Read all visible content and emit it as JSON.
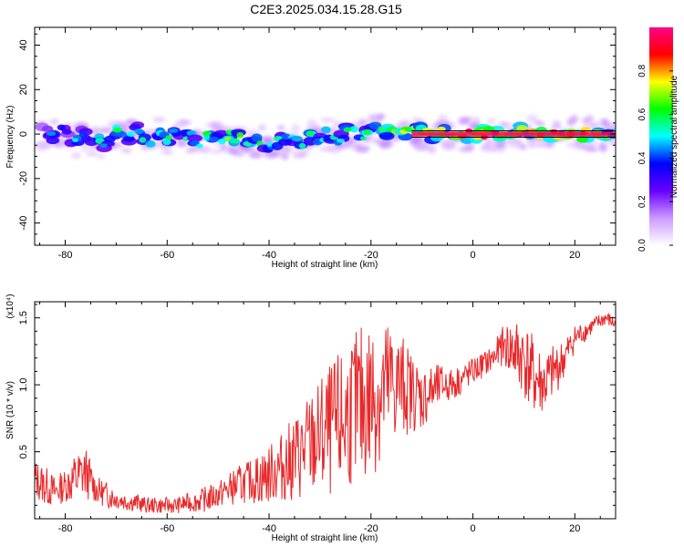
{
  "title": "C2E3.2025.034.15.28.G15",
  "colors": {
    "snr_line": "#e8282a",
    "background": "#ffffff",
    "ridge": "#000000"
  },
  "chart_data": [
    {
      "type": "heatmap",
      "title": "C2E3.2025.034.15.28.G15",
      "xlabel": "Height of straight line (km)",
      "ylabel": "Frequency (Hz)",
      "xlim": [
        -86,
        28
      ],
      "ylim": [
        -50,
        48
      ],
      "xticks": [
        -80,
        -60,
        -40,
        -20,
        0,
        20
      ],
      "yticks": [
        -40,
        -20,
        0,
        20,
        40
      ],
      "colorbar": {
        "label": "Normalized spectral amplitude",
        "range": [
          0,
          1
        ],
        "ticks": [
          0.0,
          0.2,
          0.4,
          0.6,
          0.8
        ],
        "tick_labels": [
          "0.0",
          "0.2",
          "0.4",
          "0.6",
          "0.8"
        ],
        "colormap": [
          "#ffffff",
          "#cc99ff",
          "#6600ff",
          "#0000ff",
          "#00ffff",
          "#00ff00",
          "#ffff00",
          "#ff0000",
          "#ff0088"
        ]
      },
      "ridge": {
        "x": [
          -12,
          28
        ],
        "y": 0
      },
      "blobs": [
        [
          -84,
          1,
          0.3
        ],
        [
          -82,
          -1,
          0.45
        ],
        [
          -80,
          2,
          0.35
        ],
        [
          -78,
          -3,
          0.5
        ],
        [
          -76,
          0,
          0.4
        ],
        [
          -74,
          -2,
          0.55
        ],
        [
          -72,
          -4,
          0.45
        ],
        [
          -70,
          1,
          0.6
        ],
        [
          -68,
          -1,
          0.5
        ],
        [
          -66,
          2,
          0.45
        ],
        [
          -64,
          -3,
          0.55
        ],
        [
          -62,
          0,
          0.5
        ],
        [
          -60,
          -2,
          0.6
        ],
        [
          -58,
          1,
          0.45
        ],
        [
          -56,
          -1,
          0.55
        ],
        [
          -54,
          -4,
          0.5
        ],
        [
          -52,
          0,
          0.6
        ],
        [
          -50,
          -2,
          0.5
        ],
        [
          -48,
          -1,
          0.7
        ],
        [
          -46,
          -2,
          0.65
        ],
        [
          -44,
          -3,
          0.55
        ],
        [
          -42,
          -4,
          0.6
        ],
        [
          -40,
          -5,
          0.5
        ],
        [
          -38,
          -3,
          0.55
        ],
        [
          -36,
          -2,
          0.5
        ],
        [
          -34,
          -4,
          0.55
        ],
        [
          -32,
          -1,
          0.6
        ],
        [
          -30,
          -3,
          0.5
        ],
        [
          -28,
          0,
          0.55
        ],
        [
          -26,
          -2,
          0.5
        ],
        [
          -24,
          1,
          0.6
        ],
        [
          -22,
          -1,
          0.55
        ],
        [
          -20,
          2,
          0.6
        ],
        [
          -18,
          1,
          0.65
        ],
        [
          -16,
          2,
          0.7
        ],
        [
          -14,
          1,
          0.75
        ],
        [
          -12,
          2,
          0.7
        ],
        [
          -10,
          1,
          0.75
        ],
        [
          -8,
          0,
          0.7
        ],
        [
          -6,
          1,
          0.75
        ],
        [
          -4,
          0,
          0.8
        ],
        [
          -2,
          0,
          0.85
        ],
        [
          0,
          0,
          0.9
        ],
        [
          2,
          0,
          0.92
        ],
        [
          4,
          0,
          0.9
        ],
        [
          6,
          0,
          0.75
        ],
        [
          8,
          1,
          0.8
        ],
        [
          10,
          1,
          0.85
        ],
        [
          12,
          1,
          0.8
        ],
        [
          14,
          0,
          0.85
        ],
        [
          16,
          0,
          0.9
        ],
        [
          18,
          0,
          0.95
        ],
        [
          20,
          0,
          0.95
        ],
        [
          22,
          0,
          0.9
        ],
        [
          24,
          0,
          0.8
        ],
        [
          26,
          0,
          0.7
        ],
        [
          28,
          0,
          0.6
        ]
      ]
    },
    {
      "type": "line",
      "xlabel": "Height of straight line (km)",
      "ylabel": "SNR (10 * v/v)",
      "yscale_label": "(x10⁴)",
      "xlim": [
        -86,
        28
      ],
      "ylim": [
        0,
        1.62
      ],
      "xticks": [
        -80,
        -60,
        -40,
        -20,
        0,
        20
      ],
      "yticks": [
        0.5,
        1.0,
        1.5
      ],
      "ytick_labels": [
        "0.5",
        "1.0",
        "1.5"
      ],
      "series": [
        {
          "x": [
            -86,
            -84,
            -82,
            -80,
            -78,
            -76,
            -74,
            -72,
            -70,
            -68,
            -66,
            -64,
            -62,
            -60,
            -58,
            -56,
            -54,
            -52,
            -50,
            -48,
            -46,
            -44,
            -42,
            -40,
            -38,
            -36,
            -34,
            -32,
            -30,
            -28,
            -26,
            -24,
            -22,
            -20,
            -18,
            -16,
            -14,
            -12,
            -10,
            -8,
            -6,
            -4,
            -2,
            0,
            2,
            4,
            6,
            8,
            10,
            12,
            14,
            16,
            18,
            20,
            22,
            24,
            26,
            28
          ],
          "y": [
            0.3,
            0.25,
            0.2,
            0.25,
            0.3,
            0.35,
            0.22,
            0.18,
            0.15,
            0.13,
            0.12,
            0.1,
            0.1,
            0.1,
            0.1,
            0.12,
            0.13,
            0.15,
            0.18,
            0.22,
            0.25,
            0.28,
            0.3,
            0.33,
            0.38,
            0.42,
            0.48,
            0.55,
            0.6,
            0.65,
            0.7,
            0.8,
            0.85,
            0.9,
            0.95,
            1.0,
            1.0,
            0.95,
            0.9,
            0.95,
            1.0,
            1.0,
            1.05,
            1.1,
            1.15,
            1.2,
            1.3,
            1.25,
            1.2,
            1.05,
            1.0,
            1.1,
            1.2,
            1.35,
            1.4,
            1.45,
            1.5,
            1.45
          ],
          "amplitude": [
            0.15,
            0.15,
            0.12,
            0.12,
            0.2,
            0.2,
            0.1,
            0.1,
            0.08,
            0.07,
            0.07,
            0.06,
            0.06,
            0.06,
            0.06,
            0.07,
            0.08,
            0.1,
            0.1,
            0.12,
            0.15,
            0.15,
            0.2,
            0.22,
            0.25,
            0.3,
            0.35,
            0.4,
            0.45,
            0.5,
            0.55,
            0.55,
            0.6,
            0.6,
            0.55,
            0.5,
            0.4,
            0.3,
            0.25,
            0.2,
            0.15,
            0.12,
            0.12,
            0.1,
            0.1,
            0.1,
            0.15,
            0.25,
            0.3,
            0.3,
            0.25,
            0.2,
            0.15,
            0.1,
            0.08,
            0.06,
            0.06,
            0.05
          ]
        }
      ]
    }
  ]
}
